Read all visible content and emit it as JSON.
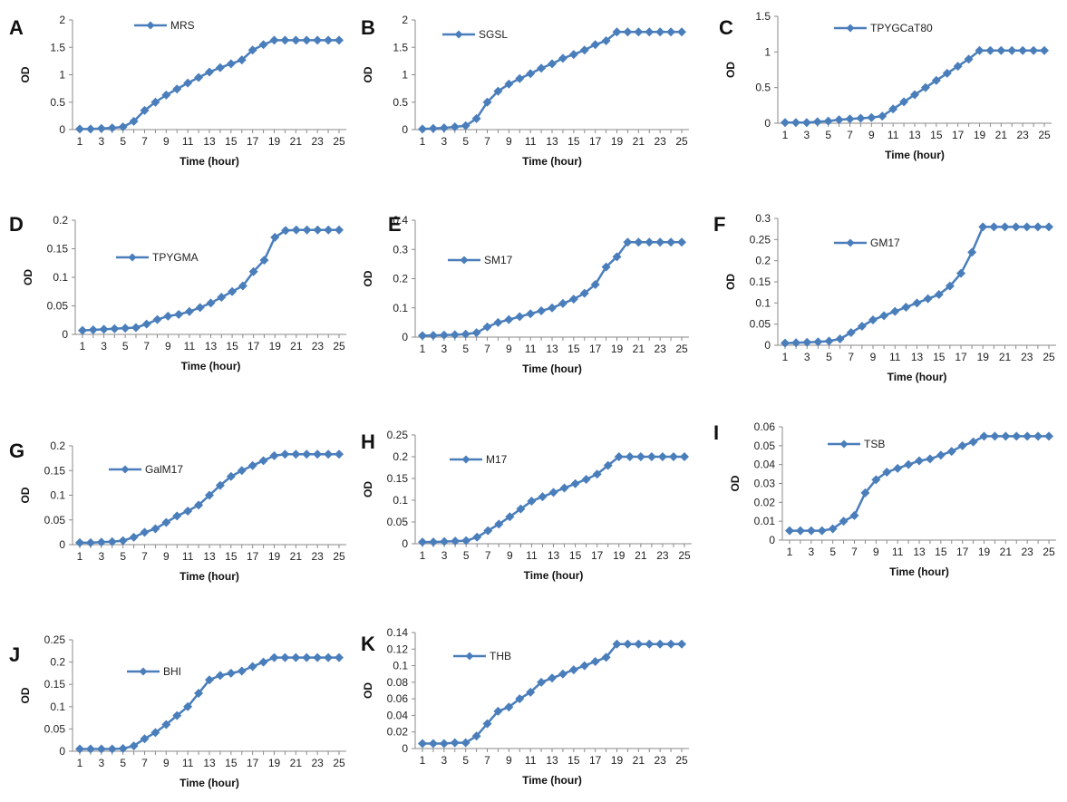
{
  "colors": {
    "series": "#4a7ebb",
    "axis": "#8a8a8a",
    "text": "#222222"
  },
  "x_tick_labels": [
    "1",
    "3",
    "5",
    "7",
    "9",
    "11",
    "13",
    "15",
    "17",
    "19",
    "21",
    "23",
    "25"
  ],
  "chart_data": [
    {
      "type": "line",
      "panel": "A",
      "series": [
        {
          "name": "MRS",
          "values": [
            0.01,
            0.01,
            0.02,
            0.03,
            0.05,
            0.15,
            0.35,
            0.5,
            0.63,
            0.74,
            0.85,
            0.95,
            1.05,
            1.13,
            1.2,
            1.27,
            1.45,
            1.55,
            1.63,
            1.63,
            1.63,
            1.63,
            1.63,
            1.63,
            1.63
          ]
        }
      ],
      "x": [
        1,
        2,
        3,
        4,
        5,
        6,
        7,
        8,
        9,
        10,
        11,
        12,
        13,
        14,
        15,
        16,
        17,
        18,
        19,
        20,
        21,
        22,
        23,
        24,
        25
      ],
      "xlabel": "Time (hour)",
      "ylabel": "OD",
      "ylim": [
        0,
        2
      ],
      "yticks": [
        "0",
        "0.5",
        "1",
        "1.5",
        "2"
      ],
      "legend": "top-center",
      "grid": false
    },
    {
      "type": "line",
      "panel": "B",
      "series": [
        {
          "name": "SGSL",
          "values": [
            0.01,
            0.02,
            0.03,
            0.05,
            0.07,
            0.2,
            0.5,
            0.7,
            0.83,
            0.93,
            1.02,
            1.12,
            1.2,
            1.3,
            1.37,
            1.45,
            1.55,
            1.62,
            1.78,
            1.78,
            1.78,
            1.78,
            1.78,
            1.78,
            1.78
          ]
        }
      ],
      "x": [
        1,
        2,
        3,
        4,
        5,
        6,
        7,
        8,
        9,
        10,
        11,
        12,
        13,
        14,
        15,
        16,
        17,
        18,
        19,
        20,
        21,
        22,
        23,
        24,
        25
      ],
      "xlabel": "Time (hour)",
      "ylabel": "OD",
      "ylim": [
        0,
        2
      ],
      "yticks": [
        "0",
        "0.5",
        "1",
        "1.5",
        "2"
      ],
      "legend": "top-center",
      "grid": false
    },
    {
      "type": "line",
      "panel": "C",
      "series": [
        {
          "name": "TPYGCaT80",
          "values": [
            0.01,
            0.01,
            0.01,
            0.02,
            0.03,
            0.05,
            0.06,
            0.07,
            0.08,
            0.1,
            0.2,
            0.3,
            0.4,
            0.5,
            0.6,
            0.7,
            0.8,
            0.9,
            1.02,
            1.02,
            1.02,
            1.02,
            1.02,
            1.02,
            1.02
          ]
        }
      ],
      "x": [
        1,
        2,
        3,
        4,
        5,
        6,
        7,
        8,
        9,
        10,
        11,
        12,
        13,
        14,
        15,
        16,
        17,
        18,
        19,
        20,
        21,
        22,
        23,
        24,
        25
      ],
      "xlabel": "Time (hour)",
      "ylabel": "OD",
      "ylim": [
        0,
        1.5
      ],
      "yticks": [
        "0",
        "0.5",
        "1",
        "1.5"
      ],
      "legend": "top-center",
      "grid": false
    },
    {
      "type": "line",
      "panel": "D",
      "series": [
        {
          "name": "TPYGMA",
          "values": [
            0.007,
            0.008,
            0.009,
            0.01,
            0.011,
            0.012,
            0.018,
            0.026,
            0.032,
            0.035,
            0.04,
            0.047,
            0.055,
            0.065,
            0.075,
            0.085,
            0.11,
            0.13,
            0.17,
            0.182,
            0.183,
            0.183,
            0.183,
            0.183,
            0.183
          ]
        }
      ],
      "x": [
        1,
        2,
        3,
        4,
        5,
        6,
        7,
        8,
        9,
        10,
        11,
        12,
        13,
        14,
        15,
        16,
        17,
        18,
        19,
        20,
        21,
        22,
        23,
        24,
        25
      ],
      "xlabel": "Time (hour)",
      "ylabel": "OD",
      "ylim": [
        0,
        0.2
      ],
      "yticks": [
        "0",
        "0.05",
        "0.1",
        "0.15",
        "0.2"
      ],
      "legend": "top-left",
      "grid": false
    },
    {
      "type": "line",
      "panel": "E",
      "series": [
        {
          "name": "SM17",
          "values": [
            0.005,
            0.006,
            0.007,
            0.008,
            0.01,
            0.015,
            0.035,
            0.05,
            0.06,
            0.07,
            0.08,
            0.09,
            0.1,
            0.115,
            0.13,
            0.15,
            0.18,
            0.24,
            0.275,
            0.325,
            0.325,
            0.325,
            0.325,
            0.325,
            0.325
          ]
        }
      ],
      "x": [
        1,
        2,
        3,
        4,
        5,
        6,
        7,
        8,
        9,
        10,
        11,
        12,
        13,
        14,
        15,
        16,
        17,
        18,
        19,
        20,
        21,
        22,
        23,
        24,
        25
      ],
      "xlabel": "Time (hour)",
      "ylabel": "OD",
      "ylim": [
        0,
        0.4
      ],
      "yticks": [
        "0",
        "0.1",
        "0.2",
        "0.3",
        "0.4"
      ],
      "legend": "top-left",
      "grid": false
    },
    {
      "type": "line",
      "panel": "F",
      "series": [
        {
          "name": "GM17",
          "values": [
            0.005,
            0.006,
            0.007,
            0.008,
            0.01,
            0.015,
            0.03,
            0.045,
            0.06,
            0.07,
            0.08,
            0.09,
            0.1,
            0.11,
            0.12,
            0.14,
            0.17,
            0.22,
            0.28,
            0.28,
            0.28,
            0.28,
            0.28,
            0.28,
            0.28
          ]
        }
      ],
      "x": [
        1,
        2,
        3,
        4,
        5,
        6,
        7,
        8,
        9,
        10,
        11,
        12,
        13,
        14,
        15,
        16,
        17,
        18,
        19,
        20,
        21,
        22,
        23,
        24,
        25
      ],
      "xlabel": "Time (hour)",
      "ylabel": "OD",
      "ylim": [
        0,
        0.3
      ],
      "yticks": [
        "0",
        "0.05",
        "0.1",
        "0.15",
        "0.2",
        "0.25",
        "0.3"
      ],
      "legend": "top-center",
      "grid": false
    },
    {
      "type": "line",
      "panel": "G",
      "series": [
        {
          "name": "GalM17",
          "values": [
            0.004,
            0.004,
            0.005,
            0.006,
            0.008,
            0.015,
            0.025,
            0.032,
            0.045,
            0.058,
            0.068,
            0.08,
            0.1,
            0.12,
            0.138,
            0.15,
            0.16,
            0.17,
            0.18,
            0.183,
            0.183,
            0.183,
            0.183,
            0.183,
            0.183
          ]
        }
      ],
      "x": [
        1,
        2,
        3,
        4,
        5,
        6,
        7,
        8,
        9,
        10,
        11,
        12,
        13,
        14,
        15,
        16,
        17,
        18,
        19,
        20,
        21,
        22,
        23,
        24,
        25
      ],
      "xlabel": "Time (hour)",
      "ylabel": "OD",
      "ylim": [
        0,
        0.2
      ],
      "yticks": [
        "0",
        "0.05",
        "0.1",
        "0.15",
        "0.2"
      ],
      "legend": "top-left",
      "grid": false
    },
    {
      "type": "line",
      "panel": "H",
      "series": [
        {
          "name": "M17",
          "values": [
            0.004,
            0.004,
            0.005,
            0.006,
            0.007,
            0.015,
            0.03,
            0.045,
            0.062,
            0.08,
            0.098,
            0.108,
            0.118,
            0.128,
            0.138,
            0.148,
            0.16,
            0.18,
            0.2,
            0.2,
            0.2,
            0.2,
            0.2,
            0.2,
            0.2
          ]
        }
      ],
      "x": [
        1,
        2,
        3,
        4,
        5,
        6,
        7,
        8,
        9,
        10,
        11,
        12,
        13,
        14,
        15,
        16,
        17,
        18,
        19,
        20,
        21,
        22,
        23,
        24,
        25
      ],
      "xlabel": "Time (hour)",
      "ylabel": "OD",
      "ylim": [
        0,
        0.25
      ],
      "yticks": [
        "0",
        "0.05",
        "0.1",
        "0.15",
        "0.2",
        "0.25"
      ],
      "legend": "top-left",
      "grid": false
    },
    {
      "type": "line",
      "panel": "I",
      "series": [
        {
          "name": "TSB",
          "values": [
            0.005,
            0.005,
            0.005,
            0.005,
            0.006,
            0.01,
            0.013,
            0.025,
            0.032,
            0.036,
            0.038,
            0.04,
            0.042,
            0.043,
            0.045,
            0.047,
            0.05,
            0.052,
            0.055,
            0.055,
            0.055,
            0.055,
            0.055,
            0.055,
            0.055
          ]
        }
      ],
      "x": [
        1,
        2,
        3,
        4,
        5,
        6,
        7,
        8,
        9,
        10,
        11,
        12,
        13,
        14,
        15,
        16,
        17,
        18,
        19,
        20,
        21,
        22,
        23,
        24,
        25
      ],
      "xlabel": "Time (hour)",
      "ylabel": "OD",
      "ylim": [
        0,
        0.06
      ],
      "yticks": [
        "0",
        "0.01",
        "0.02",
        "0.03",
        "0.04",
        "0.05",
        "0.06"
      ],
      "legend": "top-center",
      "grid": false
    },
    {
      "type": "line",
      "panel": "J",
      "series": [
        {
          "name": "BHI",
          "values": [
            0.005,
            0.005,
            0.005,
            0.005,
            0.006,
            0.012,
            0.028,
            0.042,
            0.06,
            0.08,
            0.1,
            0.13,
            0.16,
            0.17,
            0.175,
            0.18,
            0.19,
            0.2,
            0.21,
            0.21,
            0.21,
            0.21,
            0.21,
            0.21,
            0.21
          ]
        }
      ],
      "x": [
        1,
        2,
        3,
        4,
        5,
        6,
        7,
        8,
        9,
        10,
        11,
        12,
        13,
        14,
        15,
        16,
        17,
        18,
        19,
        20,
        21,
        22,
        23,
        24,
        25
      ],
      "xlabel": "Time (hour)",
      "ylabel": "OD",
      "ylim": [
        0,
        0.25
      ],
      "yticks": [
        "0",
        "0.05",
        "0.1",
        "0.15",
        "0.2",
        "0.25"
      ],
      "legend": "top-center",
      "grid": false
    },
    {
      "type": "line",
      "panel": "K",
      "series": [
        {
          "name": "THB",
          "values": [
            0.006,
            0.006,
            0.006,
            0.007,
            0.007,
            0.015,
            0.03,
            0.045,
            0.05,
            0.06,
            0.068,
            0.08,
            0.085,
            0.09,
            0.095,
            0.1,
            0.105,
            0.11,
            0.126,
            0.126,
            0.126,
            0.126,
            0.126,
            0.126,
            0.126
          ]
        }
      ],
      "x": [
        1,
        2,
        3,
        4,
        5,
        6,
        7,
        8,
        9,
        10,
        11,
        12,
        13,
        14,
        15,
        16,
        17,
        18,
        19,
        20,
        21,
        22,
        23,
        24,
        25
      ],
      "xlabel": "Time (hour)",
      "ylabel": "OD",
      "ylim": [
        0,
        0.14
      ],
      "yticks": [
        "0",
        "0.02",
        "0.04",
        "0.06",
        "0.08",
        "0.1",
        "0.12",
        "0.14"
      ],
      "legend": "top-left",
      "grid": false
    }
  ]
}
